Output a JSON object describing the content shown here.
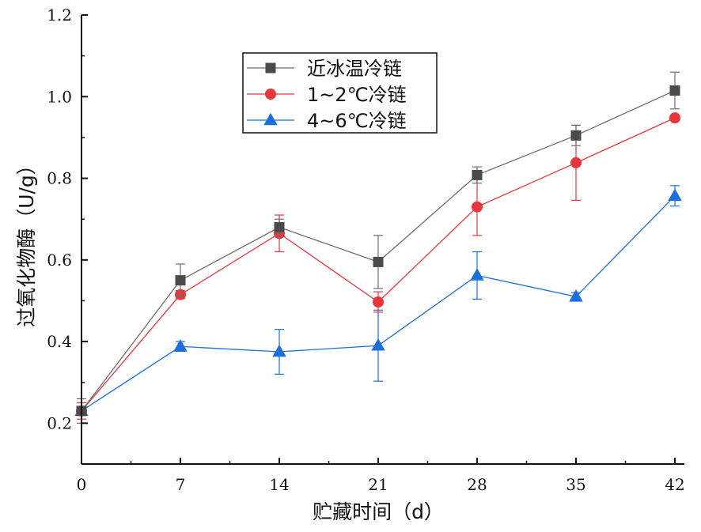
{
  "chart_data": {
    "type": "line",
    "xlabel": "贮藏时间（d）",
    "ylabel": "过氧化物酶（U/g）",
    "xlim": [
      0,
      42
    ],
    "ylim": [
      0.1,
      1.2
    ],
    "x": [
      0,
      7,
      14,
      21,
      28,
      35,
      42
    ],
    "x_tick_labels": [
      "0",
      "7",
      "14",
      "21",
      "28",
      "35",
      "42"
    ],
    "y_ticks": [
      0.2,
      0.4,
      0.6,
      0.8,
      1.0,
      1.2
    ],
    "y_tick_labels": [
      "0.2",
      "0.4",
      "0.6",
      "0.8",
      "1.0",
      "1.2"
    ],
    "grid": false,
    "legend_position": "top-left",
    "series": [
      {
        "name": "近冰温冷链",
        "marker": "square",
        "color": "#4a4a4a",
        "line_color": "#6e6e6e",
        "values": [
          0.23,
          0.55,
          0.68,
          0.595,
          0.808,
          0.905,
          1.015
        ],
        "errors": [
          0.03,
          0.04,
          0.02,
          0.065,
          0.02,
          0.025,
          0.045
        ]
      },
      {
        "name": "1~2℃冷链",
        "marker": "circle",
        "color": "#e8363c",
        "line_color": "#e8363c",
        "values": [
          0.23,
          0.515,
          0.665,
          0.497,
          0.73,
          0.838,
          0.948
        ],
        "errors": [
          0.02,
          0.01,
          0.045,
          0.025,
          0.07,
          0.092,
          0.0
        ]
      },
      {
        "name": "4~6℃冷链",
        "marker": "triangle",
        "color": "#1a6fdb",
        "line_color": "#1a6fdb",
        "values": [
          0.23,
          0.388,
          0.375,
          0.39,
          0.562,
          0.51,
          0.757
        ],
        "errors": [
          0.01,
          0.012,
          0.055,
          0.087,
          0.058,
          0.01,
          0.025
        ]
      }
    ]
  }
}
